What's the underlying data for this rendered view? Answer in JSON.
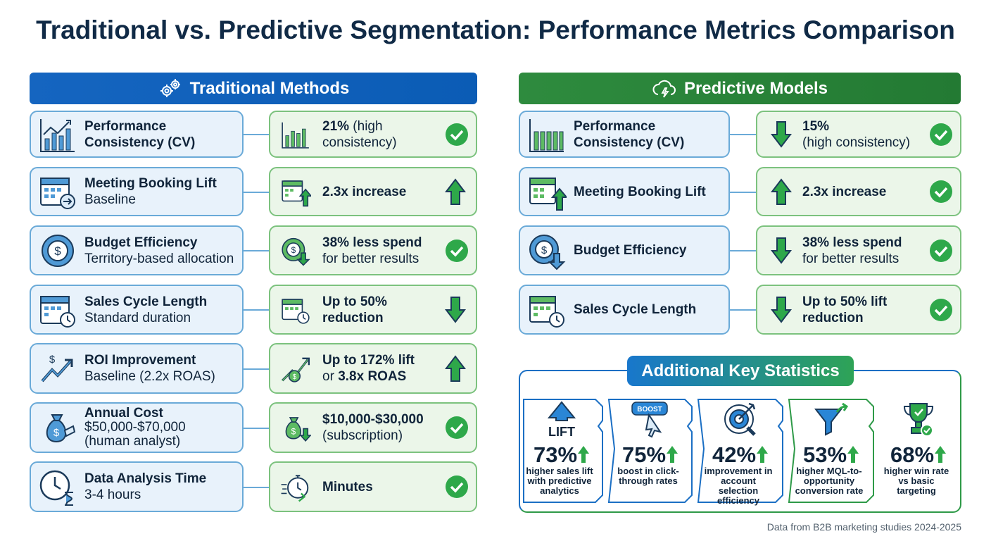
{
  "title": "Traditional vs. Predictive Segmentation: Performance Metrics Comparison",
  "traditional": {
    "header": "Traditional Methods",
    "rows": [
      {
        "metric": "Performance Consistency (CV)",
        "sub": ""
      },
      {
        "metric": "Meeting Booking Lift",
        "sub": "Baseline"
      },
      {
        "metric": "Budget Efficiency",
        "sub": "Territory-based allocation"
      },
      {
        "metric": "Sales Cycle Length",
        "sub": "Standard duration"
      },
      {
        "metric": "ROI Improvement",
        "sub": "Baseline (2.2x ROAS)"
      },
      {
        "metric": "Annual Cost",
        "sub": "$50,000-$70,000 (human analyst)"
      },
      {
        "metric": "Data Analysis Time",
        "sub": "3-4 hours"
      }
    ],
    "results": [
      {
        "pre": "21%",
        "post": " (high consistency)",
        "icon": "check"
      },
      {
        "pre": "2.3x increase",
        "post": "",
        "icon": "arrow-up"
      },
      {
        "pre": "38% less spend",
        "post": "for better results",
        "icon": "check"
      },
      {
        "pre": "Up to 50% reduction",
        "post": "",
        "icon": "arrow-down"
      },
      {
        "pre": "Up to 172% lift",
        "post": "or ",
        "strong": "3.8x ROAS",
        "icon": "arrow-up"
      },
      {
        "pre": "$10,000-$30,000",
        "post": "(subscription)",
        "icon": "check"
      },
      {
        "pre": "Minutes",
        "post": "",
        "icon": "check"
      }
    ]
  },
  "predictive": {
    "header": "Predictive Models",
    "rows": [
      {
        "metric": "Performance Consistency (CV)"
      },
      {
        "metric": "Meeting Booking Lift"
      },
      {
        "metric": "Budget Efficiency"
      },
      {
        "metric": "Sales Cycle Length"
      }
    ],
    "results": [
      {
        "pre": "15%",
        "post": "(high consistency)"
      },
      {
        "pre": "2.3x increase",
        "post": ""
      },
      {
        "pre": "38% less spend",
        "post": "for better results"
      },
      {
        "pre": "Up to 50% lift reduction",
        "post": ""
      }
    ]
  },
  "additional": {
    "header": "Additional Key Statistics",
    "stats": [
      {
        "value": "73%",
        "desc": "higher sales lift with predictive analytics",
        "icon_label": "LIFT",
        "icon": "arrow-up-icon"
      },
      {
        "value": "75%",
        "desc": "boost in click-through rates",
        "icon_label": "BOOST",
        "icon": "cursor-icon"
      },
      {
        "value": "42%",
        "desc": "improvement in account selection efficiency",
        "icon_label": "",
        "icon": "target-icon"
      },
      {
        "value": "53%",
        "desc": "higher MQL-to-opportunity conversion rate",
        "icon_label": "",
        "icon": "funnel-icon"
      },
      {
        "value": "68%",
        "desc": "higher win rate vs basic targeting",
        "icon_label": "",
        "icon": "trophy-icon"
      }
    ]
  },
  "footer": "Data from B2B marketing studies 2024-2025",
  "colors": {
    "blue": "#1565c0",
    "green": "#2e8b3e",
    "check": "#2ea84a"
  }
}
